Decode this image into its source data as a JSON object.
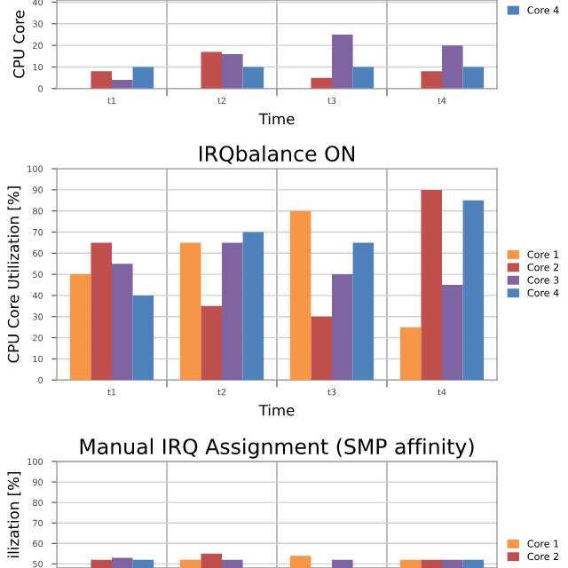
{
  "chart_data": [
    {
      "type": "bar",
      "xlabel": "Time",
      "ylabel": "CPU Core",
      "categories": [
        "t1",
        "t2",
        "t3",
        "t4"
      ],
      "series": [
        {
          "color": "#f79646",
          "values": [
            null,
            null,
            null,
            null
          ]
        },
        {
          "color": "#c0504d",
          "values": [
            8,
            17,
            5,
            8
          ]
        },
        {
          "color": "#8064a2",
          "values": [
            4,
            16,
            25,
            20
          ]
        },
        {
          "name": "Core 4",
          "color": "#4f81bd",
          "values": [
            10,
            10,
            10,
            10
          ]
        }
      ],
      "ylim": [
        0,
        41
      ],
      "yticks": [
        0,
        10,
        20,
        30,
        40
      ],
      "grid": true,
      "legend": "top right"
    },
    {
      "type": "bar",
      "title": "IRQbalance ON",
      "xlabel": "Time",
      "ylabel": "CPU Core Utilization [%]",
      "categories": [
        "t1",
        "t2",
        "t3",
        "t4"
      ],
      "series": [
        {
          "name": "Core 1",
          "color": "#f79646",
          "values": [
            50,
            65,
            80,
            25
          ]
        },
        {
          "name": "Core 2",
          "color": "#c0504d",
          "values": [
            65,
            35,
            30,
            90
          ]
        },
        {
          "name": "Core 3",
          "color": "#8064a2",
          "values": [
            55,
            65,
            50,
            45
          ]
        },
        {
          "name": "Core 4",
          "color": "#4f81bd",
          "values": [
            40,
            70,
            65,
            85
          ]
        }
      ],
      "ylim": [
        0,
        100
      ],
      "yticks": [
        0,
        10,
        20,
        30,
        40,
        50,
        60,
        70,
        80,
        90,
        100
      ],
      "grid": true,
      "legend": "right"
    },
    {
      "type": "bar",
      "title": "Manual IRQ Assignment (SMP affinity)",
      "ylabel": "ilization [%]",
      "categories": [
        null,
        null,
        null,
        null
      ],
      "series": [
        {
          "name": "Core 1",
          "color": "#f79646",
          "values": [
            null,
            52,
            54,
            52
          ]
        },
        {
          "name": "Core 2",
          "color": "#c0504d",
          "values": [
            52,
            55,
            null,
            52
          ]
        },
        {
          "color": "#8064a2",
          "values": [
            53,
            52,
            52,
            52
          ]
        },
        {
          "color": "#4f81bd",
          "values": [
            52,
            null,
            null,
            52
          ]
        }
      ],
      "ylim": [
        48,
        100
      ],
      "yticks": [
        50,
        60,
        70,
        80,
        90,
        100
      ],
      "grid": true,
      "legend": "bottom right",
      "tick_labels": "y"
    }
  ]
}
